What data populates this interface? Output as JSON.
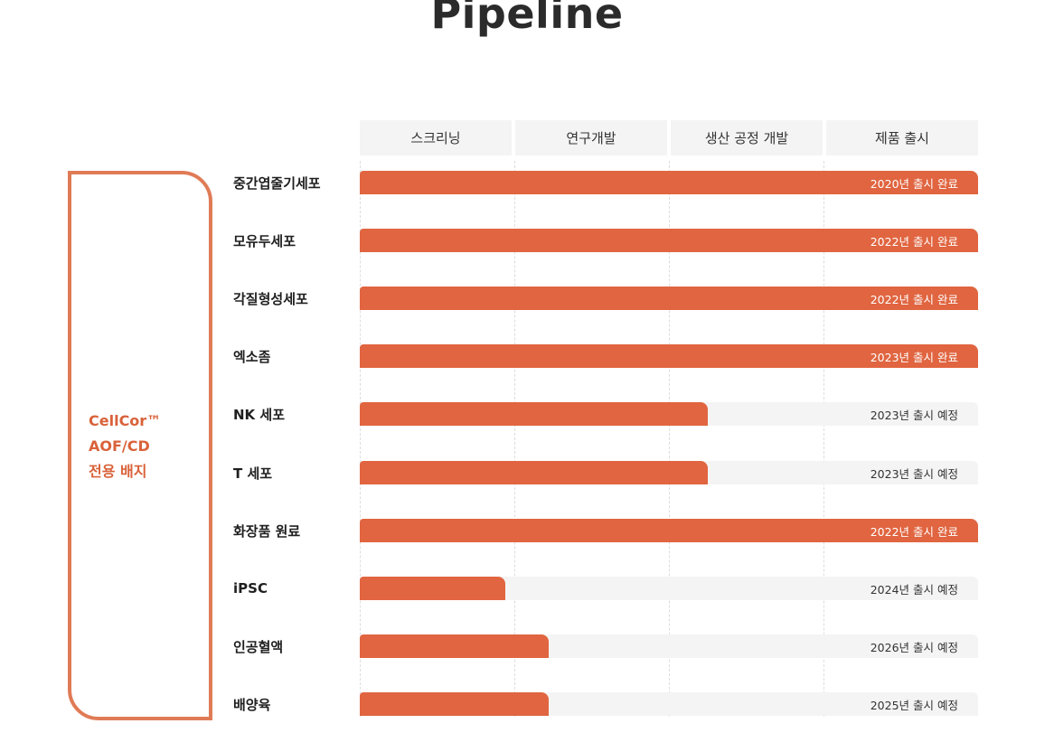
{
  "page": {
    "title": "Pipeline"
  },
  "chart_data": {
    "type": "bar",
    "stages": [
      "스크리닝",
      "연구개발",
      "생산 공정 개발",
      "제품 출시"
    ],
    "group_label": "CellCor™\nAOF/CD\n전용 배지",
    "colors": {
      "bar": "#e06540",
      "track": "#f4f4f4",
      "group": "#e07b56"
    },
    "categories": [
      "중간엽줄기세포",
      "모유두세포",
      "각질형성세포",
      "엑소좀",
      "NK 세포",
      "T 세포",
      "화장품 원료",
      "iPSC",
      "인공혈액",
      "배양육"
    ],
    "progress": [
      4,
      4,
      4,
      4,
      2.25,
      2.25,
      4,
      0.94,
      1.22,
      1.22
    ],
    "xlim": [
      0,
      4
    ],
    "status_labels": [
      "2020년 출시 완료",
      "2022년 출시 완료",
      "2022년 출시 완료",
      "2023년 출시 완료",
      "2023년 출시 예정",
      "2023년 출시 예정",
      "2022년 출시 완료",
      "2024년 출시 예정",
      "2026년 출시 예정",
      "2025년 출시 예정"
    ],
    "completed": [
      true,
      true,
      true,
      true,
      false,
      false,
      true,
      false,
      false,
      false
    ]
  }
}
